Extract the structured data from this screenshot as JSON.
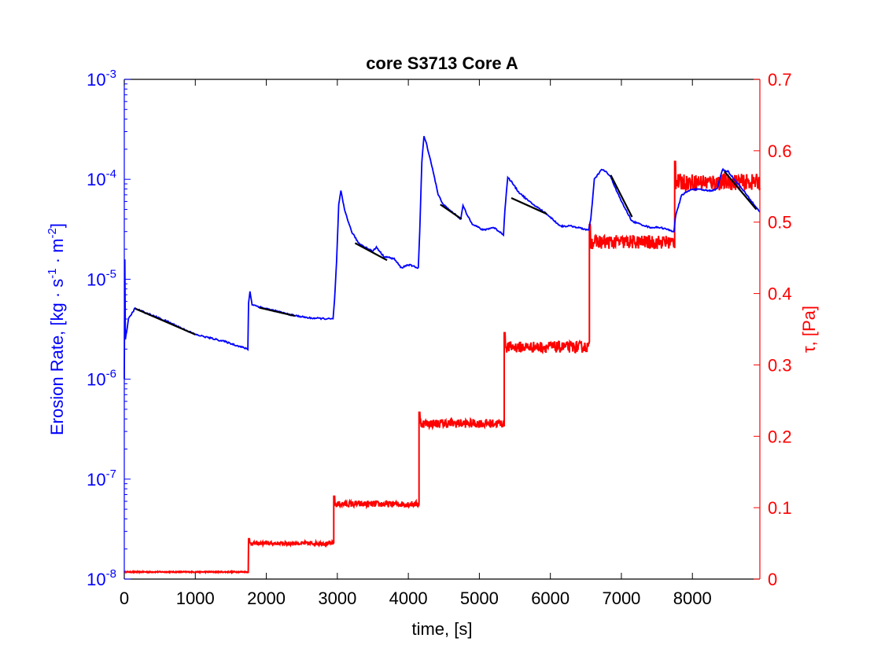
{
  "chart_data": {
    "type": "line",
    "title": "core S3713 Core A",
    "xlabel": "time, [s]",
    "ylabel_left": {
      "base": "Erosion Rate, [kg · s",
      "sup1": "-1",
      "mid": " · m",
      "sup2": "-2",
      "end": "]"
    },
    "ylabel_right": "τ, [Pa]",
    "xlim": [
      0,
      8950
    ],
    "ylim_left": [
      1e-08,
      0.001
    ],
    "ylim_right": [
      0,
      0.7
    ],
    "yscale_left": "log",
    "grid": false,
    "x_ticks": [
      "0",
      "1000",
      "2000",
      "3000",
      "4000",
      "5000",
      "6000",
      "7000",
      "8000"
    ],
    "x_tick_values": [
      0,
      1000,
      2000,
      3000,
      4000,
      5000,
      6000,
      7000,
      8000
    ],
    "left_ticks": [
      {
        "base": "10",
        "exp": "-8"
      },
      {
        "base": "10",
        "exp": "-7"
      },
      {
        "base": "10",
        "exp": "-6"
      },
      {
        "base": "10",
        "exp": "-5"
      },
      {
        "base": "10",
        "exp": "-4"
      },
      {
        "base": "10",
        "exp": "-3"
      }
    ],
    "left_tick_exponents": [
      -8,
      -7,
      -6,
      -5,
      -4,
      -3
    ],
    "right_ticks": [
      "0",
      "0.1",
      "0.2",
      "0.3",
      "0.4",
      "0.5",
      "0.6",
      "0.7"
    ],
    "right_tick_values": [
      0,
      0.1,
      0.2,
      0.3,
      0.4,
      0.5,
      0.6,
      0.7
    ],
    "colors": {
      "erosion": "#0000ff",
      "tau": "#ff0000",
      "fit": "#000000",
      "axis": "#000000"
    },
    "series": [
      {
        "name": "Erosion Rate",
        "axis": "left",
        "color": "#0000ff",
        "points": [
          [
            0,
            1e-06
          ],
          [
            8,
            1.6e-05
          ],
          [
            15,
            2.5e-06
          ],
          [
            60,
            4e-06
          ],
          [
            150,
            5.1e-06
          ],
          [
            600,
            3.8e-06
          ],
          [
            1000,
            2.8e-06
          ],
          [
            1400,
            2.4e-06
          ],
          [
            1740,
            2e-06
          ],
          [
            1750,
            5.8e-06
          ],
          [
            1770,
            7.5e-06
          ],
          [
            1800,
            5.6e-06
          ],
          [
            1900,
            5.3e-06
          ],
          [
            2350,
            4.4e-06
          ],
          [
            2600,
            4.1e-06
          ],
          [
            2940,
            4e-06
          ],
          [
            2960,
            6e-06
          ],
          [
            2990,
            1.5e-05
          ],
          [
            3020,
            5.5e-05
          ],
          [
            3050,
            7.6e-05
          ],
          [
            3100,
            5e-05
          ],
          [
            3200,
            3e-05
          ],
          [
            3300,
            2.3e-05
          ],
          [
            3500,
            1.9e-05
          ],
          [
            3550,
            2.1e-05
          ],
          [
            3650,
            1.7e-05
          ],
          [
            3800,
            1.6e-05
          ],
          [
            3900,
            1.3e-05
          ],
          [
            4000,
            1.4e-05
          ],
          [
            4140,
            1.3e-05
          ],
          [
            4160,
            3e-05
          ],
          [
            4190,
            0.00015
          ],
          [
            4220,
            0.00027
          ],
          [
            4260,
            0.00022
          ],
          [
            4350,
            0.00012
          ],
          [
            4420,
            7e-05
          ],
          [
            4500,
            5.5e-05
          ],
          [
            4650,
            4.5e-05
          ],
          [
            4740,
            4e-05
          ],
          [
            4770,
            5.5e-05
          ],
          [
            4820,
            4.5e-05
          ],
          [
            4900,
            3.6e-05
          ],
          [
            5050,
            3.1e-05
          ],
          [
            5200,
            3.3e-05
          ],
          [
            5340,
            2.8e-05
          ],
          [
            5360,
            5e-05
          ],
          [
            5400,
            0.000105
          ],
          [
            5450,
            9.5e-05
          ],
          [
            5550,
            7.5e-05
          ],
          [
            5700,
            6e-05
          ],
          [
            5950,
            4.5e-05
          ],
          [
            6100,
            3.6e-05
          ],
          [
            6150,
            3.4e-05
          ],
          [
            6300,
            3.4e-05
          ],
          [
            6540,
            3.1e-05
          ],
          [
            6570,
            4e-05
          ],
          [
            6620,
            0.0001
          ],
          [
            6720,
            0.000125
          ],
          [
            6780,
            0.00012
          ],
          [
            6850,
            0.000105
          ],
          [
            7000,
            6e-05
          ],
          [
            7150,
            3.8e-05
          ],
          [
            7400,
            3.3e-05
          ],
          [
            7550,
            3.3e-05
          ],
          [
            7740,
            3e-05
          ],
          [
            7760,
            4.2e-05
          ],
          [
            7850,
            7e-05
          ],
          [
            8000,
            8e-05
          ],
          [
            8250,
            7.7e-05
          ],
          [
            8350,
            8e-05
          ],
          [
            8420,
            0.000125
          ],
          [
            8500,
            0.00012
          ],
          [
            8700,
            8e-05
          ],
          [
            8950,
            4.7e-05
          ]
        ]
      },
      {
        "name": "τ",
        "axis": "right",
        "color": "#ff0000",
        "steps": [
          [
            0,
            1750,
            0.01
          ],
          [
            1750,
            2950,
            0.05
          ],
          [
            2950,
            4150,
            0.105
          ],
          [
            4150,
            5350,
            0.218
          ],
          [
            5350,
            6550,
            0.325
          ],
          [
            6550,
            7750,
            0.472
          ],
          [
            7750,
            8950,
            0.556
          ]
        ]
      }
    ],
    "fits": [
      [
        [
          150,
          5.1e-06
        ],
        [
          1000,
          2.8e-06
        ]
      ],
      [
        [
          1900,
          5.2e-06
        ],
        [
          2400,
          4.3e-06
        ]
      ],
      [
        [
          3250,
          2.3e-05
        ],
        [
          3700,
          1.55e-05
        ]
      ],
      [
        [
          4450,
          5.6e-05
        ],
        [
          4750,
          4e-05
        ]
      ],
      [
        [
          5450,
          6.5e-05
        ],
        [
          5950,
          4.5e-05
        ]
      ],
      [
        [
          6850,
          0.00011
        ],
        [
          7150,
          4.2e-05
        ]
      ],
      [
        [
          8450,
          0.00012
        ],
        [
          8900,
          5e-05
        ]
      ]
    ]
  }
}
